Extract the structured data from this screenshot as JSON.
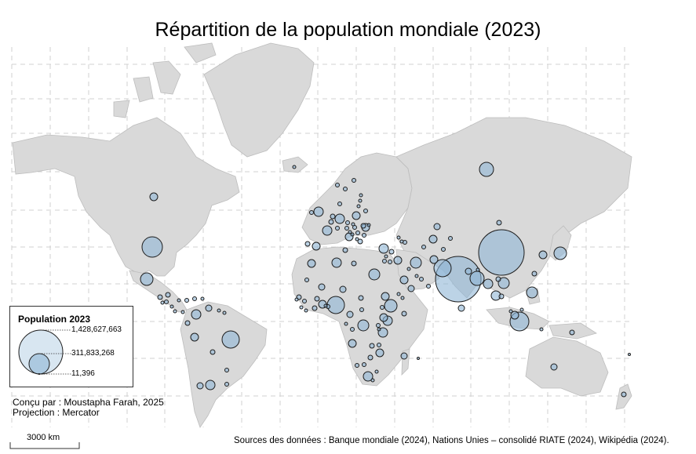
{
  "map": {
    "title": "Répartition de la population mondiale (2023)",
    "legend": {
      "title": "Population 2023",
      "values": [
        "1,428,627,663",
        "311,833,268",
        "11,396"
      ]
    },
    "credits": {
      "author": "Conçu par : Moustapha Farah, 2025",
      "projection": "Projection : Mercator"
    },
    "scale_label": "3000 km",
    "sources": "Sources des données : Banque mondiale (2024), Nations Unies – consolidé RIATE (2024), Wikipédia (2024).",
    "colors": {
      "land": "#d9d9d9",
      "bubble": "#8fb6d6",
      "grid": "#d0d0d0"
    }
  }
}
